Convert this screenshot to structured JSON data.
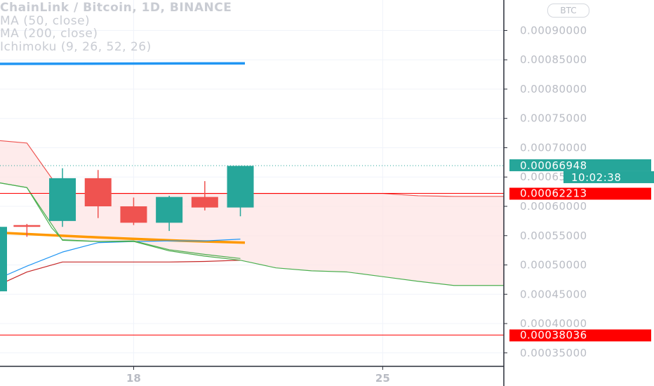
{
  "legend": {
    "title": "ChainLink / Bitcoin, 1D, BINANCE",
    "ma50": "MA (50, close)",
    "ma200": "MA (200, close)",
    "ichimoku": "Ichimoku (9, 26, 52, 26)"
  },
  "currency_button": "BTC",
  "colors": {
    "up": "#26a69a",
    "down": "#ef5350",
    "ma50": "#2196f3",
    "ma200": "#ff9800",
    "cloud": "#fde4e4",
    "lagging": "#4caf50",
    "price_line": "#ff0000",
    "axis_text": "#b9bcc4"
  },
  "chart_data": {
    "type": "candlestick",
    "y_axis": {
      "range": [
        0.000327,
        0.000952
      ],
      "ticks": [
        "0.00035000",
        "0.00040000",
        "0.00045000",
        "0.00050000",
        "0.00055000",
        "0.00060000",
        "0.00065000",
        "0.00070000",
        "0.00075000",
        "0.00080000",
        "0.00085000",
        "0.00090000"
      ],
      "tick_values": [
        0.00035,
        0.0004,
        0.00045,
        0.0005,
        0.00055,
        0.0006,
        0.00065,
        0.0007,
        0.00075,
        0.0008,
        0.00085,
        0.0009
      ]
    },
    "x_axis": {
      "day_range": [
        14.2,
        28.3
      ],
      "ticks": [
        {
          "label": "18",
          "day": 18
        },
        {
          "label": "25",
          "day": 25
        }
      ]
    },
    "candles": [
      {
        "day": 14.2,
        "open": 0.000455,
        "high": 0.000565,
        "low": 0.000455,
        "close": 0.000565
      },
      {
        "day": 15,
        "open": 0.000568,
        "high": 0.00057,
        "low": 0.000548,
        "close": 0.000565
      },
      {
        "day": 16,
        "open": 0.000575,
        "high": 0.000665,
        "low": 0.000565,
        "close": 0.000648
      },
      {
        "day": 17,
        "open": 0.000648,
        "high": 0.000662,
        "low": 0.00058,
        "close": 0.0006
      },
      {
        "day": 18,
        "open": 0.0006,
        "high": 0.000615,
        "low": 0.000568,
        "close": 0.000572
      },
      {
        "day": 19,
        "open": 0.000572,
        "high": 0.000618,
        "low": 0.000558,
        "close": 0.000616
      },
      {
        "day": 20,
        "open": 0.000616,
        "high": 0.000643,
        "low": 0.000593,
        "close": 0.000598
      },
      {
        "day": 21,
        "open": 0.000598,
        "high": 0.000669,
        "low": 0.000583,
        "close": 0.000669
      }
    ],
    "series": [
      {
        "name": "MA (50, close)",
        "kind": "line",
        "x": [
          14.2,
          21
        ],
        "y": [
          0.000843,
          0.000844
        ]
      },
      {
        "name": "MA (200, close)",
        "kind": "line",
        "x": [
          14.2,
          17,
          19,
          21
        ],
        "y": [
          0.000555,
          0.000547,
          0.000542,
          0.000538
        ]
      },
      {
        "name": "Ichimoku conversion",
        "kind": "line",
        "x": [
          14.2,
          15,
          16,
          17,
          18,
          19,
          20,
          21
        ],
        "y": [
          0.000478,
          0.000498,
          0.000522,
          0.000538,
          0.00054,
          0.000541,
          0.000541,
          0.000544
        ]
      },
      {
        "name": "Ichimoku base",
        "kind": "line",
        "x": [
          14.2,
          15,
          16,
          17,
          18,
          19,
          20,
          21
        ],
        "y": [
          0.000467,
          0.000488,
          0.000505,
          0.000505,
          0.000505,
          0.000505,
          0.000506,
          0.000508
        ]
      },
      {
        "name": "Ichimoku lagging span",
        "kind": "line",
        "x": [
          14.2,
          15,
          15.7,
          16,
          17,
          18,
          19,
          20,
          21
        ],
        "y": [
          0.00064,
          0.000632,
          0.000563,
          0.000543,
          0.00054,
          0.000541,
          0.000526,
          0.000518,
          0.000511
        ]
      },
      {
        "name": "Ichimoku leading span A",
        "kind": "line",
        "x": [
          14.2,
          15,
          16,
          17,
          18,
          19,
          20,
          21,
          22,
          23,
          24,
          25,
          26,
          27,
          28.3
        ],
        "y": [
          0.00064,
          0.000632,
          0.000542,
          0.00054,
          0.00054,
          0.000524,
          0.000515,
          0.000508,
          0.000495,
          0.00049,
          0.000488,
          0.00048,
          0.000472,
          0.000465,
          0.000465
        ]
      },
      {
        "name": "Ichimoku leading span B",
        "kind": "line",
        "x": [
          14.2,
          15,
          16,
          17,
          18,
          19,
          20,
          21,
          22,
          23,
          24,
          25,
          26,
          27,
          28.3
        ],
        "y": [
          0.000712,
          0.000708,
          0.000622,
          0.000622,
          0.000622,
          0.000622,
          0.000622,
          0.000622,
          0.000622,
          0.000622,
          0.000622,
          0.000622,
          0.000618,
          0.000617,
          0.000617
        ]
      }
    ],
    "horizontal_lines": [
      {
        "value": 0.00062213,
        "label": "0.00062213",
        "color": "#ff0000"
      },
      {
        "value": 0.00038036,
        "label": "0.00038036",
        "color": "#ff0000"
      }
    ],
    "last_price": {
      "value": 0.00066948,
      "label": "0.00066948",
      "countdown": "10:02:38",
      "color": "#26a69a"
    },
    "grid": true
  }
}
